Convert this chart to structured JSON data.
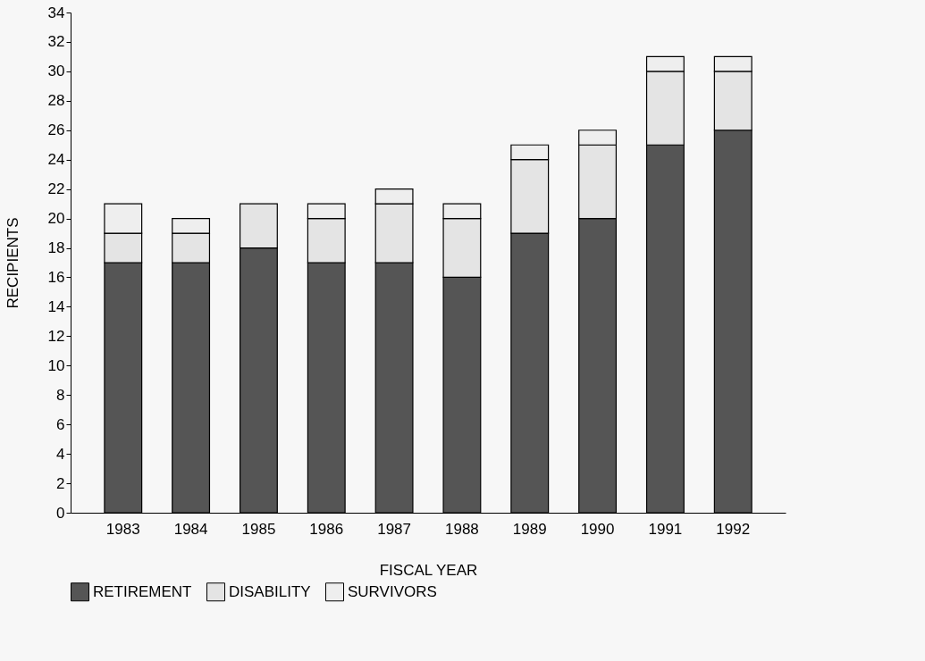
{
  "chart_data": {
    "type": "bar",
    "stacked": true,
    "xlabel": "FISCAL YEAR",
    "ylabel": "RECIPIENTS",
    "categories": [
      "1983",
      "1984",
      "1985",
      "1986",
      "1987",
      "1988",
      "1989",
      "1990",
      "1991",
      "1992"
    ],
    "series": [
      {
        "name": "RETIREMENT",
        "color": "#555555",
        "values": [
          17,
          17,
          18,
          17,
          17,
          16,
          19,
          20,
          25,
          26
        ]
      },
      {
        "name": "DISABILITY",
        "color": "#e4e4e4",
        "values": [
          2,
          2,
          3,
          3,
          4,
          4,
          5,
          5,
          5,
          4
        ]
      },
      {
        "name": "SURVIVORS",
        "color": "#eeeeee",
        "values": [
          2,
          1,
          null,
          1,
          1,
          1,
          1,
          1,
          1,
          1
        ]
      }
    ],
    "ylim": [
      0,
      34
    ],
    "yticks": [
      0,
      2,
      4,
      6,
      8,
      10,
      12,
      14,
      16,
      18,
      20,
      22,
      24,
      26,
      28,
      30,
      32,
      34
    ],
    "grid": false,
    "legend": "bottom"
  }
}
